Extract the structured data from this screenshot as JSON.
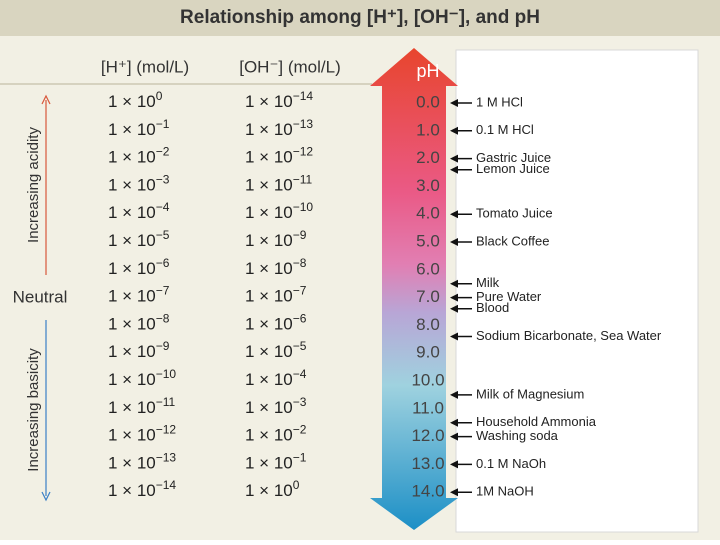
{
  "title": "Relationship among [H⁺], [OH⁻], and pH",
  "columns": {
    "h": "[H⁺] (mol/L)",
    "oh": "[OH⁻] (mol/L)",
    "ph": "pH"
  },
  "side_labels": {
    "acid": "Increasing acidity",
    "neutral": "Neutral",
    "base": "Increasing basicity"
  },
  "rows": [
    {
      "h_base": "1 × 10",
      "h_exp": "0",
      "oh_base": "1 × 10",
      "oh_exp": "−14",
      "ph": "0.0"
    },
    {
      "h_base": "1 × 10",
      "h_exp": "−1",
      "oh_base": "1 × 10",
      "oh_exp": "−13",
      "ph": "1.0"
    },
    {
      "h_base": "1 × 10",
      "h_exp": "−2",
      "oh_base": "1 × 10",
      "oh_exp": "−12",
      "ph": "2.0"
    },
    {
      "h_base": "1 × 10",
      "h_exp": "−3",
      "oh_base": "1 × 10",
      "oh_exp": "−11",
      "ph": "3.0"
    },
    {
      "h_base": "1 × 10",
      "h_exp": "−4",
      "oh_base": "1 × 10",
      "oh_exp": "−10",
      "ph": "4.0"
    },
    {
      "h_base": "1 × 10",
      "h_exp": "−5",
      "oh_base": "1 × 10",
      "oh_exp": "−9",
      "ph": "5.0"
    },
    {
      "h_base": "1 × 10",
      "h_exp": "−6",
      "oh_base": "1 × 10",
      "oh_exp": "−8",
      "ph": "6.0"
    },
    {
      "h_base": "1 × 10",
      "h_exp": "−7",
      "oh_base": "1 × 10",
      "oh_exp": "−7",
      "ph": "7.0"
    },
    {
      "h_base": "1 × 10",
      "h_exp": "−8",
      "oh_base": "1 × 10",
      "oh_exp": "−6",
      "ph": "8.0"
    },
    {
      "h_base": "1 × 10",
      "h_exp": "−9",
      "oh_base": "1 × 10",
      "oh_exp": "−5",
      "ph": "9.0"
    },
    {
      "h_base": "1 × 10",
      "h_exp": "−10",
      "oh_base": "1 × 10",
      "oh_exp": "−4",
      "ph": "10.0"
    },
    {
      "h_base": "1 × 10",
      "h_exp": "−11",
      "oh_base": "1 × 10",
      "oh_exp": "−3",
      "ph": "11.0"
    },
    {
      "h_base": "1 × 10",
      "h_exp": "−12",
      "oh_base": "1 × 10",
      "oh_exp": "−2",
      "ph": "12.0"
    },
    {
      "h_base": "1 × 10",
      "h_exp": "−13",
      "oh_base": "1 × 10",
      "oh_exp": "−1",
      "ph": "13.0"
    },
    {
      "h_base": "1 × 10",
      "h_exp": "−14",
      "oh_base": "1 × 10",
      "oh_exp": "0",
      "ph": "14.0"
    }
  ],
  "substances": [
    {
      "label": "1 M HCl",
      "ph": 0
    },
    {
      "label": "0.1 M HCl",
      "ph": 1
    },
    {
      "label": "Gastric Juice",
      "ph": 2
    },
    {
      "label": "Lemon Juice",
      "ph": 2.4
    },
    {
      "label": "Tomato Juice",
      "ph": 4
    },
    {
      "label": "Black Coffee",
      "ph": 5
    },
    {
      "label": "Milk",
      "ph": 6.5
    },
    {
      "label": "Pure Water",
      "ph": 7
    },
    {
      "label": "Blood",
      "ph": 7.4
    },
    {
      "label": "Sodium Bicarbonate, Sea Water",
      "ph": 8.4
    },
    {
      "label": "Milk of Magnesium",
      "ph": 10.5
    },
    {
      "label": "Household Ammonia",
      "ph": 11.5
    },
    {
      "label": "Washing soda",
      "ph": 12
    },
    {
      "label": "0.1 M NaOh",
      "ph": 13
    },
    {
      "label": "1M NaOH",
      "ph": 14
    }
  ]
}
